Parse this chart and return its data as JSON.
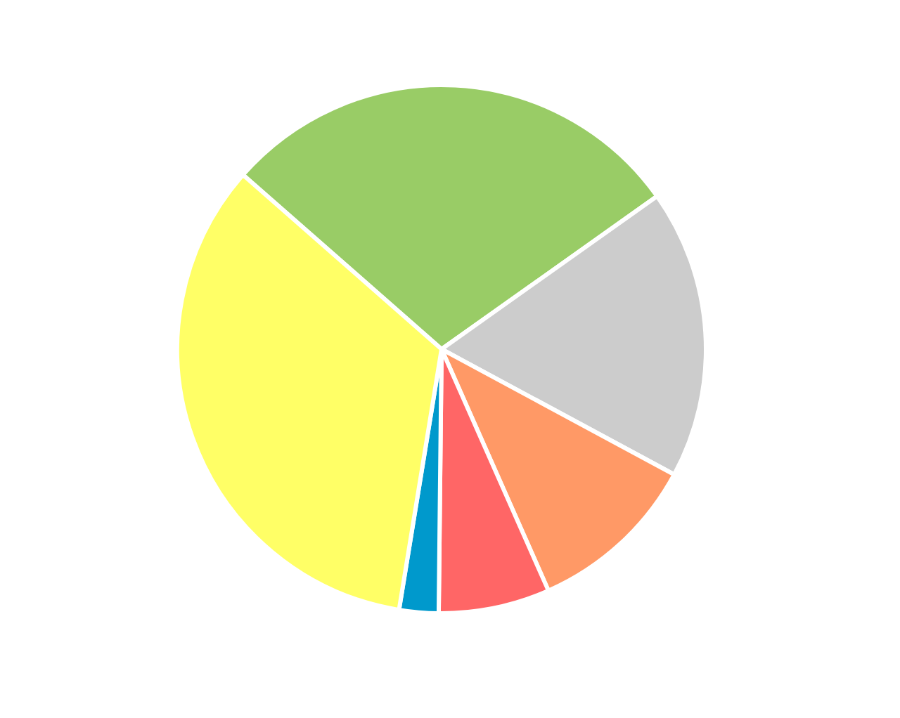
{
  "chart_data": {
    "type": "pie",
    "categories": [
      null,
      null,
      null,
      null,
      null,
      null
    ],
    "values": [
      28.7,
      17.7,
      10.5,
      6.8,
      2.4,
      33.9
    ],
    "colors": [
      "#99cc66",
      "#cccccc",
      "#ff9966",
      "#ff6666",
      "#0099cc",
      "#ffff66"
    ]
  }
}
